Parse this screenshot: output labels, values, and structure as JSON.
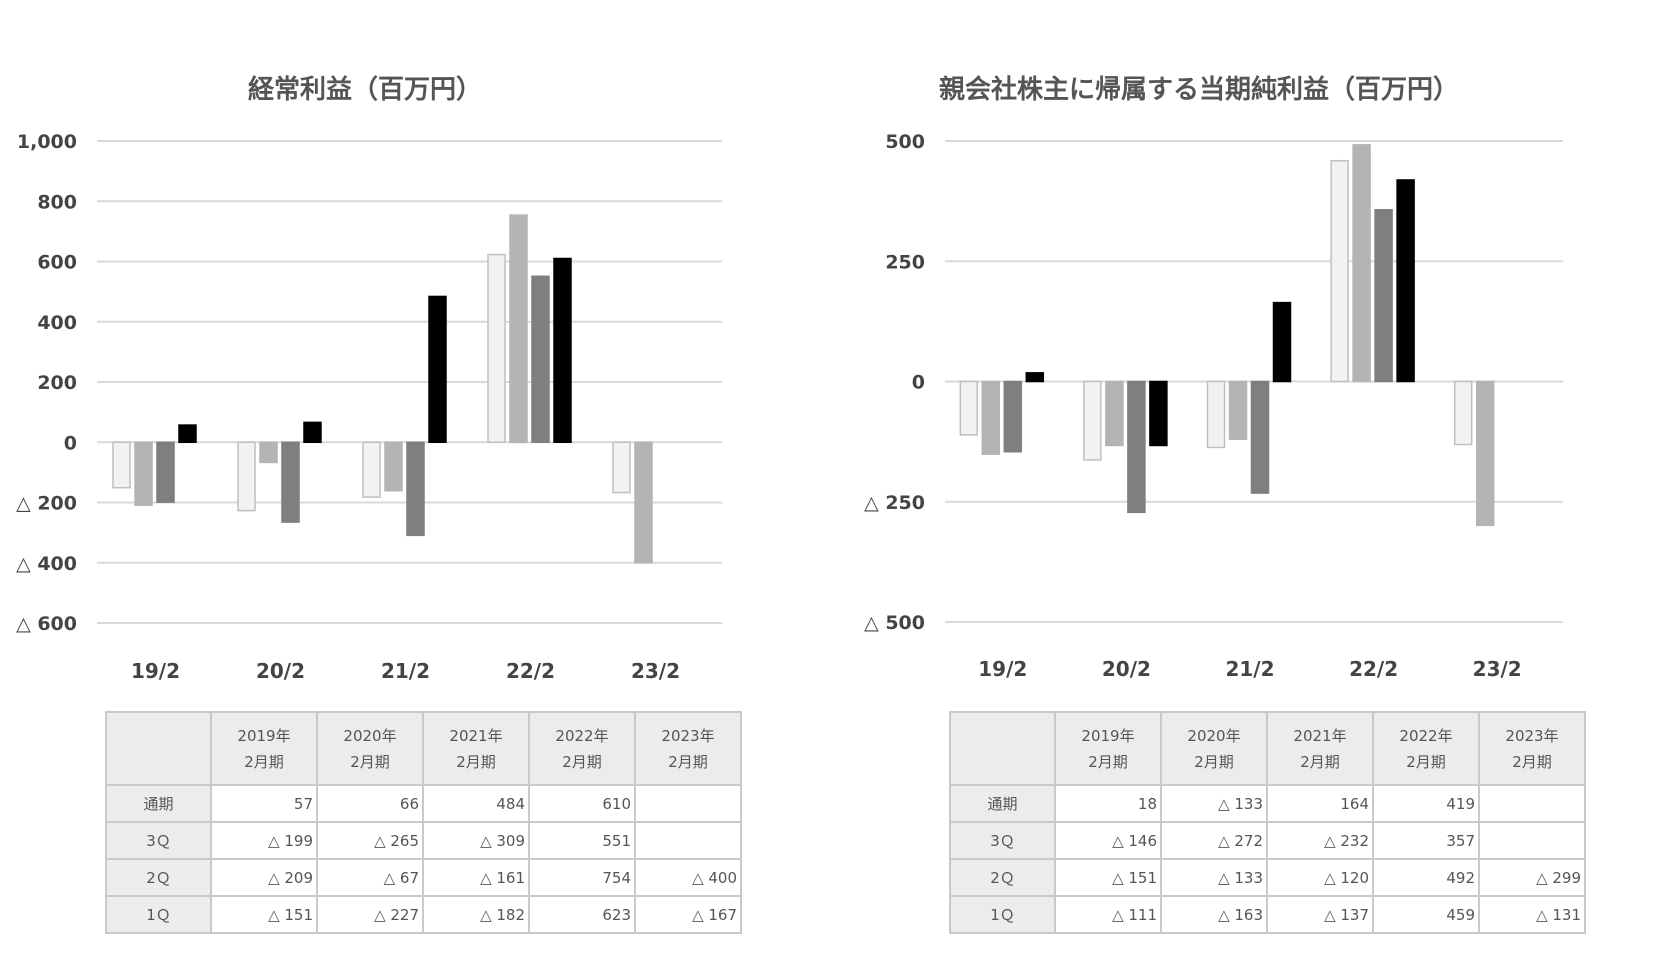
{
  "periods": [
    "19/2",
    "20/2",
    "21/2",
    "22/2",
    "23/2"
  ],
  "quarters": [
    "1Q",
    "2Q",
    "3Q",
    "通期"
  ],
  "bar_colors": [
    "#f2f2f2",
    "#b4b4b4",
    "#7f7f7f",
    "#000000"
  ],
  "bar_strokes": [
    "#bfbfbf",
    "#b4b4b4",
    "#7f7f7f",
    "#000000"
  ],
  "gridline_color": "#d9d9d9",
  "table": {
    "col_headers": [
      {
        "year": "2019年",
        "term": "2月期"
      },
      {
        "year": "2020年",
        "term": "2月期"
      },
      {
        "year": "2021年",
        "term": "2月期"
      },
      {
        "year": "2022年",
        "term": "2月期"
      },
      {
        "year": "2023年",
        "term": "2月期"
      }
    ],
    "row_labels": [
      "通期",
      "3Ｑ",
      "2Ｑ",
      "1Ｑ"
    ]
  },
  "chart_data": [
    {
      "type": "bar",
      "title": "経常利益（百万円）",
      "categories": [
        "19/2",
        "20/2",
        "21/2",
        "22/2",
        "23/2"
      ],
      "ylim": [
        -600,
        1000
      ],
      "yticks": [
        1000,
        800,
        600,
        400,
        200,
        0,
        -200,
        -400,
        -600
      ],
      "ytick_labels": [
        "1,000",
        "800",
        "600",
        "400",
        "200",
        "0",
        "△ 200",
        "△ 400",
        "△ 600"
      ],
      "grid": true,
      "series": [
        {
          "values": [
            -151,
            -227,
            -182,
            623,
            -167
          ]
        },
        {
          "values": [
            -209,
            -67,
            -161,
            754,
            -400
          ]
        },
        {
          "values": [
            -199,
            -265,
            -309,
            551,
            null
          ]
        },
        {
          "values": [
            57,
            66,
            484,
            610,
            null
          ]
        }
      ],
      "table_rows": [
        [
          "57",
          "66",
          "484",
          "610",
          ""
        ],
        [
          "△ 199",
          "△ 265",
          "△ 309",
          "551",
          ""
        ],
        [
          "△ 209",
          "△ 67",
          "△ 161",
          "754",
          "△ 400"
        ],
        [
          "△ 151",
          "△ 227",
          "△ 182",
          "623",
          "△ 167"
        ]
      ]
    },
    {
      "type": "bar",
      "title": "親会社株主に帰属する当期純利益（百万円）",
      "categories": [
        "19/2",
        "20/2",
        "21/2",
        "22/2",
        "23/2"
      ],
      "ylim": [
        -500,
        500
      ],
      "yticks": [
        500,
        250,
        0,
        -250,
        -500
      ],
      "ytick_labels": [
        "500",
        "250",
        "0",
        "△ 250",
        "△ 500"
      ],
      "grid": true,
      "series": [
        {
          "values": [
            -111,
            -163,
            -137,
            459,
            -131
          ]
        },
        {
          "values": [
            -151,
            -133,
            -120,
            492,
            -299
          ]
        },
        {
          "values": [
            -146,
            -272,
            -232,
            357,
            null
          ]
        },
        {
          "values": [
            18,
            -133,
            164,
            419,
            null
          ]
        }
      ],
      "table_rows": [
        [
          "18",
          "△ 133",
          "164",
          "419",
          ""
        ],
        [
          "△ 146",
          "△ 272",
          "△ 232",
          "357",
          ""
        ],
        [
          "△ 151",
          "△ 133",
          "△ 120",
          "492",
          "△ 299"
        ],
        [
          "△ 111",
          "△ 163",
          "△ 137",
          "459",
          "△ 131"
        ]
      ]
    }
  ]
}
